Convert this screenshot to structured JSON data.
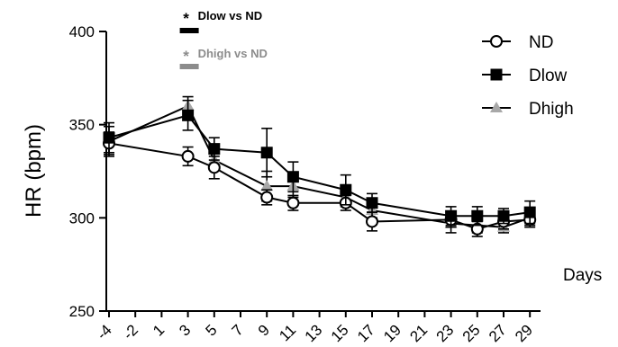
{
  "chart_data": {
    "type": "line",
    "title": "",
    "ylabel": "HR (bpm)",
    "xlabel": "Days",
    "ylim": [
      250,
      400
    ],
    "yticks": [
      250,
      300,
      350,
      400
    ],
    "xticks": [
      "-4",
      "-2",
      "1",
      "3",
      "5",
      "7",
      "9",
      "11",
      "13",
      "15",
      "17",
      "19",
      "21",
      "23",
      "25",
      "27",
      "29"
    ],
    "grid": false,
    "legend_position": "top-right",
    "series": [
      {
        "name": "ND",
        "marker": "open-circle",
        "color": "#000000",
        "x": [
          "-4",
          "3",
          "5",
          "9",
          "11",
          "15",
          "17",
          "23",
          "25",
          "27",
          "29"
        ],
        "values": [
          340,
          333,
          327,
          311,
          308,
          308,
          298,
          299,
          294,
          298,
          299
        ],
        "error": [
          6,
          5,
          6,
          4,
          4,
          4,
          5,
          4,
          4,
          4,
          4
        ]
      },
      {
        "name": "Dlow",
        "marker": "filled-square",
        "color": "#000000",
        "x": [
          "-4",
          "3",
          "5",
          "9",
          "11",
          "15",
          "17",
          "23",
          "25",
          "27",
          "29"
        ],
        "values": [
          343,
          355,
          337,
          335,
          322,
          315,
          308,
          301,
          301,
          301,
          303
        ],
        "error": [
          8,
          8,
          6,
          13,
          8,
          8,
          5,
          5,
          5,
          4,
          6
        ]
      },
      {
        "name": "Dhigh",
        "marker": "filled-triangle",
        "color": "#A8A8A8",
        "x": [
          "-4",
          "3",
          "5",
          "9",
          "11",
          "15",
          "17",
          "23",
          "25",
          "27",
          "29"
        ],
        "values": [
          341,
          360,
          331,
          317,
          317,
          311,
          304,
          297,
          296,
          295,
          300
        ],
        "error": [
          8,
          5,
          5,
          8,
          6,
          5,
          4,
          5,
          4,
          3,
          4
        ]
      }
    ],
    "annotations": [
      {
        "star": "*",
        "text": "Dlow vs ND",
        "color": "#000000",
        "x": "3"
      },
      {
        "star": "*",
        "text": "Dhigh vs ND",
        "color": "#8C8C8C",
        "x": "3"
      }
    ]
  }
}
